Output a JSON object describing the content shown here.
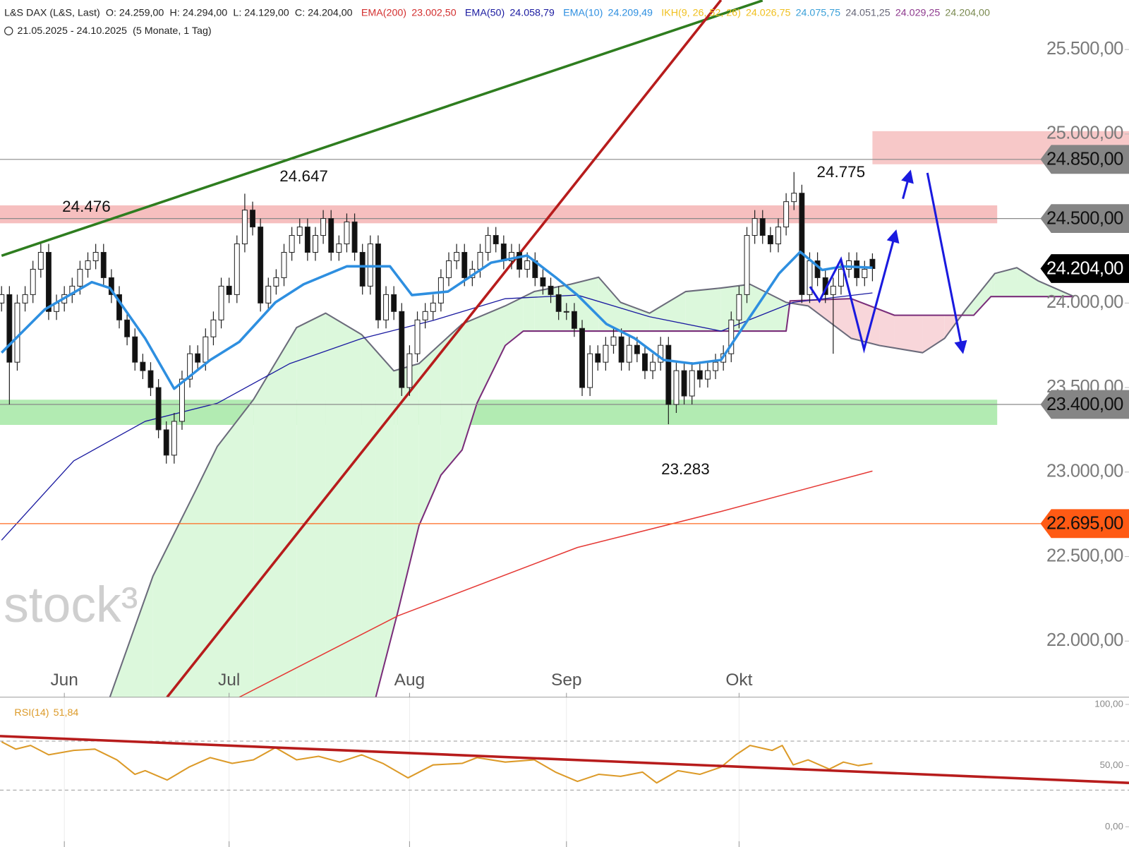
{
  "chart_data": {
    "type": "candlestick",
    "title": "L&S DAX (L&S, Last)",
    "ohlc_header": [
      "O: 24.259,00",
      "H: 24.294,00",
      "L: 24.129,00",
      "C: 24.204,00"
    ],
    "indicators_header": [
      {
        "name": "EMA(200)",
        "color": "#d32f2f",
        "values": [
          "23.002,50"
        ],
        "value_colors": [
          "#d32f2f"
        ]
      },
      {
        "name": "EMA(50)",
        "color": "#1a1aa0",
        "values": [
          "24.058,79"
        ],
        "value_colors": [
          "#1a1aa0"
        ]
      },
      {
        "name": "EMA(10)",
        "color": "#2e8fe0",
        "values": [
          "24.209,49"
        ],
        "value_colors": [
          "#2e8fe0"
        ]
      },
      {
        "name": "IKH(9, 26, 52, 26)",
        "color": "#f0c020",
        "values": [
          "24.026,75",
          "24.075,75",
          "24.051,25",
          "24.029,25",
          "24.204,00"
        ],
        "value_colors": [
          "#f0c020",
          "#3aa0d8",
          "#666677",
          "#8e3a8e",
          "#7a8a50"
        ]
      }
    ],
    "subtitle": "21.05.2025 - 24.10.2025",
    "subtitle_period": "(5 Monate, 1 Tag)",
    "watermark": "stock³",
    "xlim": [
      -0.2,
      143.7
    ],
    "xticks": [
      {
        "value": 8,
        "label": "Jun"
      },
      {
        "value": 29,
        "label": "Jul"
      },
      {
        "value": 52,
        "label": "Aug"
      },
      {
        "value": 72,
        "label": "Sep"
      },
      {
        "value": 94,
        "label": "Okt"
      }
    ],
    "ylim": [
      21668,
      25793
    ],
    "yticks": [
      {
        "value": 22000,
        "label": "22.000,00"
      },
      {
        "value": 22500,
        "label": "22.500,00"
      },
      {
        "value": 23000,
        "label": "23.000,00"
      },
      {
        "value": 23500,
        "label": "23.500,00"
      },
      {
        "value": 24000,
        "label": "24.000,00"
      },
      {
        "value": 24500,
        "label": "24.500,00"
      },
      {
        "value": 25000,
        "label": "25.000,00"
      },
      {
        "value": 25500,
        "label": "25.500,00"
      }
    ],
    "up_color": "#ffffff",
    "down_color": "#111111",
    "open": [
      24000,
      24050,
      23650,
      24000,
      24050,
      24200,
      24300,
      23950,
      24000,
      24050,
      24100,
      24200,
      24250,
      24300,
      24150,
      24050,
      23900,
      23800,
      23650,
      23600,
      23500,
      23250,
      23100,
      23300,
      23550,
      23700,
      23650,
      23800,
      23900,
      24100,
      24050,
      24350,
      24550,
      24450,
      24000,
      24100,
      24150,
      24300,
      24400,
      24450,
      24300,
      24400,
      24500,
      24300,
      24350,
      24480,
      24300,
      24100,
      24350,
      23900,
      24050,
      23950,
      23500,
      23700,
      23900,
      23950,
      24000,
      24150,
      24250,
      24300,
      24150,
      24200,
      24300,
      24400,
      24350,
      24250,
      24300,
      24200,
      24250,
      24150,
      24100,
      24050,
      23950,
      23950,
      23850,
      23500,
      23700,
      23650,
      23750,
      23800,
      23650,
      23750,
      23700,
      23600,
      23650,
      23750,
      23400,
      23600,
      23450,
      23600,
      23550,
      23600,
      23650,
      23700,
      23900,
      24050,
      24400,
      24500,
      24400,
      24350,
      24450,
      24600,
      24650,
      24050,
      24250,
      24150,
      24050,
      24100,
      24200,
      24250,
      24150,
      24259
    ],
    "high": [
      24100,
      24100,
      24050,
      24100,
      24250,
      24350,
      24350,
      24050,
      24100,
      24150,
      24250,
      24300,
      24350,
      24350,
      24200,
      24100,
      23950,
      23850,
      23700,
      23650,
      23550,
      23300,
      23350,
      23600,
      23750,
      23750,
      23850,
      23950,
      24150,
      24150,
      24400,
      24647,
      24600,
      24500,
      24150,
      24200,
      24350,
      24450,
      24500,
      24500,
      24450,
      24550,
      24550,
      24400,
      24530,
      24530,
      24350,
      24400,
      24400,
      24100,
      24100,
      24000,
      23750,
      23950,
      24000,
      24050,
      24200,
      24300,
      24350,
      24350,
      24250,
      24350,
      24450,
      24450,
      24400,
      24350,
      24350,
      24300,
      24300,
      24200,
      24150,
      24100,
      24000,
      24000,
      23900,
      23750,
      23750,
      23800,
      23850,
      23850,
      23800,
      23800,
      23750,
      23700,
      23800,
      23800,
      23650,
      23650,
      23650,
      23650,
      23650,
      23700,
      23750,
      23950,
      24100,
      24450,
      24550,
      24550,
      24450,
      24500,
      24650,
      24775,
      24700,
      24300,
      24300,
      24200,
      24150,
      24250,
      24300,
      24300,
      24250,
      24294
    ],
    "low": [
      23950,
      23400,
      23600,
      23950,
      24000,
      24150,
      23900,
      23900,
      23950,
      24000,
      24050,
      24150,
      24200,
      24100,
      24000,
      23850,
      23750,
      23600,
      23550,
      23450,
      23200,
      23050,
      23050,
      23250,
      23500,
      23600,
      23600,
      23750,
      23850,
      24000,
      24000,
      24300,
      24400,
      23950,
      23950,
      24050,
      24100,
      24250,
      24350,
      24250,
      24250,
      24350,
      24250,
      24250,
      24300,
      24250,
      24050,
      24050,
      23850,
      23850,
      23900,
      23450,
      23450,
      23650,
      23850,
      23900,
      23950,
      24100,
      24200,
      24100,
      24100,
      24150,
      24250,
      24300,
      24200,
      24200,
      24150,
      24150,
      24100,
      24050,
      24000,
      23900,
      23900,
      23800,
      23450,
      23450,
      23600,
      23600,
      23700,
      23600,
      23600,
      23650,
      23550,
      23550,
      23600,
      23283,
      23350,
      23400,
      23400,
      23500,
      23500,
      23550,
      23600,
      23650,
      23850,
      24000,
      24350,
      24350,
      24300,
      24300,
      24400,
      24550,
      24000,
      24000,
      24100,
      24000,
      23700,
      24050,
      24150,
      24100,
      24100,
      24129
    ],
    "close": [
      24050,
      23650,
      24000,
      24050,
      24200,
      24300,
      23950,
      24000,
      24050,
      24100,
      24200,
      24250,
      24300,
      24150,
      24050,
      23900,
      23800,
      23650,
      23600,
      23500,
      23250,
      23100,
      23300,
      23550,
      23700,
      23650,
      23800,
      23900,
      24100,
      24050,
      24350,
      24550,
      24450,
      24000,
      24100,
      24150,
      24300,
      24400,
      24450,
      24300,
      24400,
      24500,
      24300,
      24350,
      24480,
      24300,
      24100,
      24350,
      23900,
      24050,
      23950,
      23500,
      23700,
      23900,
      23950,
      24000,
      24150,
      24250,
      24300,
      24150,
      24200,
      24300,
      24400,
      24350,
      24250,
      24300,
      24200,
      24250,
      24150,
      24100,
      24050,
      23950,
      23950,
      23850,
      23500,
      23700,
      23650,
      23750,
      23800,
      23650,
      23750,
      23700,
      23600,
      23650,
      23750,
      23400,
      23600,
      23450,
      23600,
      23550,
      23600,
      23650,
      23700,
      23900,
      24050,
      24400,
      24500,
      24400,
      24350,
      24450,
      24600,
      24650,
      24050,
      24250,
      24150,
      24050,
      24100,
      24200,
      24250,
      24150,
      24200,
      24204
    ],
    "overlays": [
      {
        "name": "EMA(200)",
        "color": "#e53935",
        "width": 1.5,
        "x": [
          30.3,
          50.5,
          73.4,
          91.7,
          111
        ],
        "values": [
          21668,
          22149,
          22554,
          22767,
          23006
        ]
      },
      {
        "name": "EMA(50)",
        "color": "#1a1aa0",
        "width": 1.3,
        "x": [
          0,
          9.2,
          18.3,
          27.5,
          36.7,
          45.9,
          55,
          64.2,
          73.4,
          82.6,
          91.7,
          100.9,
          111
        ],
        "values": [
          22597,
          23066,
          23300,
          23407,
          23641,
          23790,
          23897,
          24026,
          24047,
          23919,
          23834,
          24004,
          24060
        ]
      },
      {
        "name": "EMA(10)",
        "color": "#2e8fe0",
        "width": 3.5,
        "x": [
          0,
          5.5,
          11.5,
          13.8,
          18.3,
          22,
          26.6,
          30.3,
          34.9,
          38.5,
          44,
          49.5,
          52.3,
          56.9,
          62.4,
          67,
          70.6,
          73.4,
          77.1,
          80.7,
          84.4,
          88.1,
          91.7,
          95.4,
          99.1,
          101.8,
          104.6,
          107.3,
          111
        ],
        "values": [
          23706,
          23962,
          24124,
          24089,
          23791,
          23493,
          23663,
          23770,
          24004,
          24111,
          24217,
          24217,
          24047,
          24068,
          24239,
          24281,
          24153,
          24047,
          23876,
          23791,
          23663,
          23642,
          23663,
          23919,
          24175,
          24303,
          24196,
          24217,
          24209
        ]
      }
    ],
    "cloud": {
      "up_color": "#dcf8dc",
      "down_color": "#f8d6da",
      "span_a_color": "#6b6b7b",
      "span_b_color": "#7a2e7a",
      "span_a": {
        "x": [
          13.8,
          19.3,
          24.8,
          27.5,
          32.1,
          37.6,
          41.3,
          45.9,
          50,
          53.2,
          58.7,
          64.2,
          67.9,
          72.5,
          76.1,
          78.9,
          82.6,
          87.2,
          91.7,
          95.4,
          100,
          102.8,
          108.3,
          111.9,
          117.4,
          120.2,
          122.9,
          126.6,
          129.4,
          132.1,
          136.7
        ],
        "values": [
          21668,
          22385,
          22896,
          23152,
          23429,
          23855,
          23940,
          23813,
          23599,
          23642,
          23876,
          23983,
          24068,
          24111,
          24153,
          24004,
          23940,
          24068,
          24089,
          24111,
          24004,
          23983,
          23791,
          23749,
          23706,
          23791,
          23962,
          24175,
          24209,
          24132,
          24038
        ]
      },
      "span_b": {
        "x": [
          47.7,
          50.5,
          53.2,
          56,
          58.7,
          60.6,
          64.2,
          66.5,
          100,
          100.5,
          108.3,
          113.8,
          123.9,
          126.1,
          136.7
        ],
        "values": [
          21668,
          22172,
          22683,
          22982,
          23131,
          23408,
          23749,
          23834,
          23834,
          24013,
          24026,
          23928,
          23928,
          24038,
          24038
        ]
      }
    },
    "trendlines": [
      {
        "color": "#2e7d1f",
        "x": [
          0,
          97
        ],
        "values": [
          24280,
          25790
        ]
      },
      {
        "color": "#b71c1c",
        "x": [
          21.1,
          91.7
        ],
        "values": [
          21668,
          25793
        ]
      }
    ],
    "zones": [
      {
        "from": 24472,
        "to": 24578,
        "x_from": -0.2,
        "x_to": 126.9,
        "color": "#f4b4b4"
      },
      {
        "from": 24821,
        "to": 25017,
        "x_from": 111,
        "x_to": 143.7,
        "color": "#f6bebe"
      },
      {
        "from": 23279,
        "to": 23428,
        "x_from": -0.2,
        "x_to": 126.9,
        "color": "#a4e8a4"
      }
    ],
    "levels": [
      {
        "value": 24850,
        "label": "24.850,00",
        "color": "#858585",
        "text_color": "#111111",
        "line": true,
        "line_color": "#8a8a8a"
      },
      {
        "value": 24500,
        "label": "24.500,00",
        "color": "#858585",
        "text_color": "#111111",
        "line": true,
        "line_color": "#8a8a8a"
      },
      {
        "value": 24204,
        "label": "24.204,00",
        "color": "#000000",
        "text_color": "#ffffff",
        "line": false,
        "line_color": "#000000"
      },
      {
        "value": 23400,
        "label": "23.400,00",
        "color": "#858585",
        "text_color": "#111111",
        "line": true,
        "line_color": "#8a8a8a"
      },
      {
        "value": 22695,
        "label": "22.695,00",
        "color": "#ff5a14",
        "text_color": "#111111",
        "line": true,
        "line_color": "#ff6a20"
      }
    ],
    "annotations": [
      "24.476",
      "24.647",
      "24.775",
      "23.283"
    ],
    "rsi": {
      "title": "RSI(14)",
      "value_label": "51,84",
      "color": "#dc9a28",
      "ylim": [
        -16.5,
        105.9
      ],
      "yticks": [
        {
          "value": 0,
          "label": "0,00"
        },
        {
          "value": 50,
          "label": "50,00"
        },
        {
          "value": 100,
          "label": "100,00"
        }
      ],
      "bands": [
        30,
        70
      ],
      "x": [
        0,
        1.8,
        3.7,
        6,
        9.2,
        11.9,
        14.7,
        17,
        18.3,
        21.1,
        23.9,
        26.6,
        29.4,
        32.1,
        34.9,
        37.6,
        40.4,
        43.1,
        45.9,
        48.6,
        51.8,
        55,
        58.7,
        60.6,
        64.2,
        67.9,
        70.6,
        73.4,
        76.1,
        78.9,
        81.7,
        83.5,
        86.2,
        89,
        91.7,
        93.6,
        95.4,
        98.2,
        99.5,
        100.9,
        102.8,
        105.5,
        107.3,
        109.2,
        111
      ],
      "values": [
        69.4,
        63.5,
        66.5,
        58.8,
        62.4,
        63.5,
        54.7,
        42.9,
        45.9,
        38.2,
        48.8,
        56.5,
        51.8,
        54.7,
        64.7,
        54.7,
        57.6,
        52.9,
        58.8,
        51.8,
        40,
        50.6,
        51.8,
        56.5,
        52.9,
        54.7,
        44.7,
        37.1,
        42.9,
        41.2,
        44.7,
        35.9,
        45.9,
        42.9,
        48.8,
        58.8,
        66.5,
        62.4,
        66.5,
        50.6,
        54.7,
        47.1,
        52.9,
        50,
        51.84
      ],
      "trendline": {
        "color": "#b71c1c",
        "x": [
          -0.2,
          143.7
        ],
        "values": [
          74.1,
          35.9
        ]
      }
    }
  }
}
